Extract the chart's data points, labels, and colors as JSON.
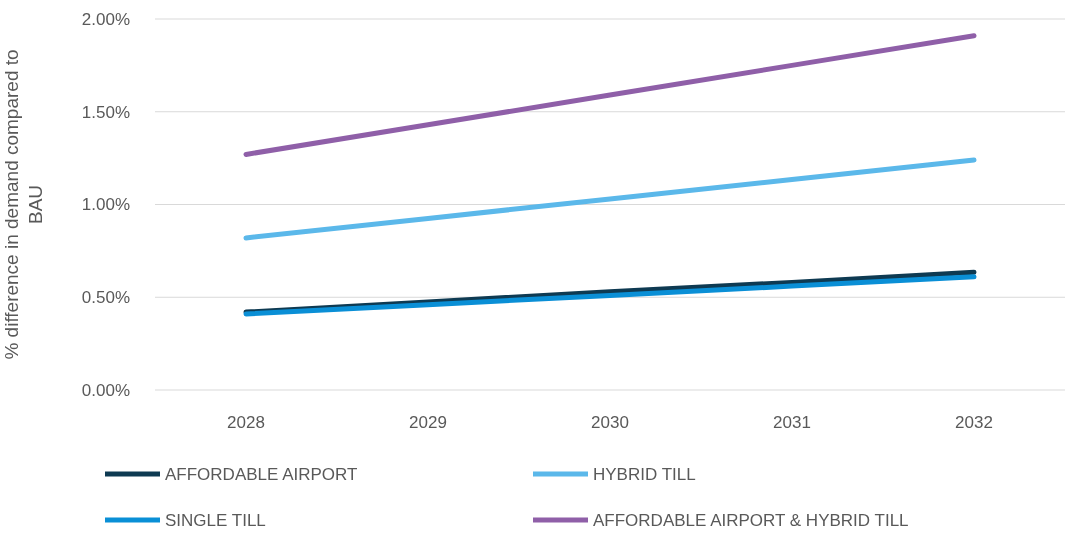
{
  "chart_data": {
    "type": "line",
    "ylabel": "% difference in demand compared to BAU",
    "categories": [
      "2028",
      "2029",
      "2030",
      "2031",
      "2032"
    ],
    "series": [
      {
        "name": "AFFORDABLE AIRPORT",
        "color": "#0e3a52",
        "values": [
          0.42,
          0.475,
          0.53,
          0.58,
          0.635
        ]
      },
      {
        "name": "HYBRID TILL",
        "color": "#5bb8ea",
        "values": [
          0.82,
          0.925,
          1.03,
          1.135,
          1.24
        ]
      },
      {
        "name": "SINGLE TILL",
        "color": "#0a8fd6",
        "values": [
          0.41,
          0.46,
          0.51,
          0.56,
          0.61
        ]
      },
      {
        "name": "AFFORDABLE AIRPORT & HYBRID TILL",
        "color": "#8f5fa8",
        "values": [
          1.27,
          1.43,
          1.59,
          1.75,
          1.91
        ]
      }
    ],
    "ylim": [
      0,
      2
    ],
    "yticks": [
      {
        "value": 0,
        "label": "0.00%"
      },
      {
        "value": 0.5,
        "label": "0.50%"
      },
      {
        "value": 1,
        "label": "1.00%"
      },
      {
        "value": 1.5,
        "label": "1.50%"
      },
      {
        "value": 2,
        "label": "2.00%"
      }
    ],
    "grid": "y",
    "legend": "bottom",
    "marker": "none",
    "line_style": "solid"
  }
}
